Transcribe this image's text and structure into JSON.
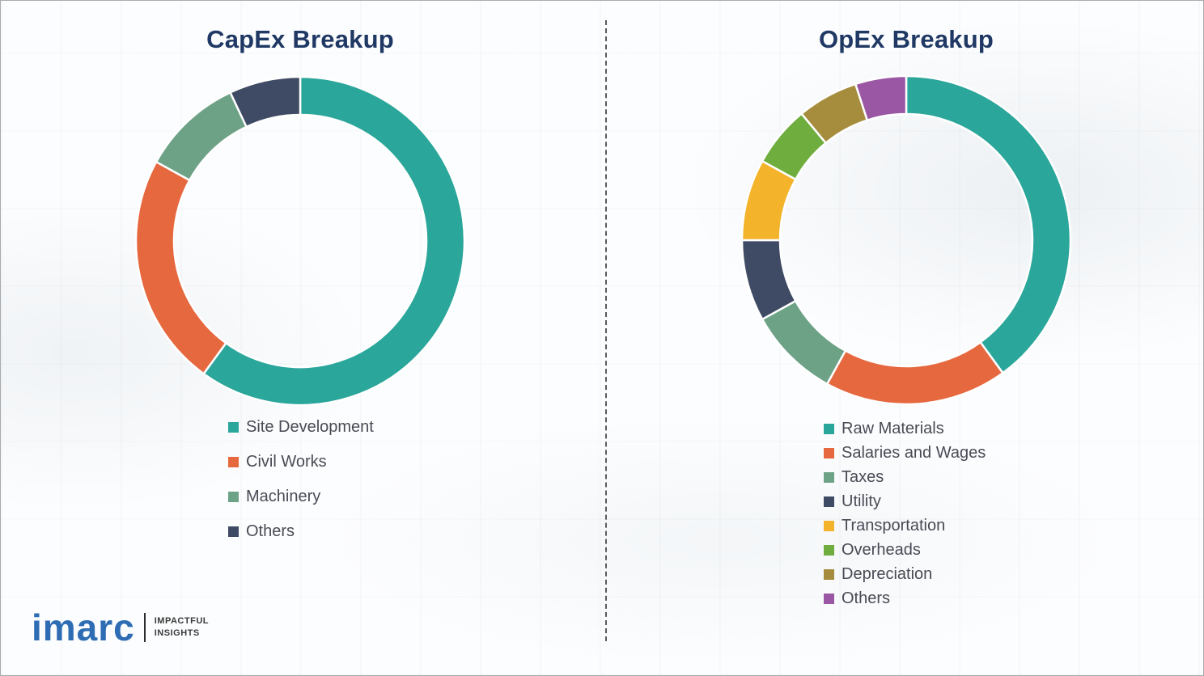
{
  "chart_data": [
    {
      "type": "pie",
      "subtype": "donut",
      "title": "CapEx Breakup",
      "labels": [
        "Site Development",
        "Civil Works",
        "Machinery",
        "Others"
      ],
      "values": [
        60,
        23,
        10,
        7
      ],
      "colors": [
        "#2ba69b",
        "#e6683f",
        "#6da287",
        "#3f4b64"
      ],
      "legend_position": "below-left",
      "start_angle_deg": -90,
      "direction": "clockwise"
    },
    {
      "type": "pie",
      "subtype": "donut",
      "title": "OpEx Breakup",
      "labels": [
        "Raw Materials",
        "Salaries and Wages",
        "Taxes",
        "Utility",
        "Transportation",
        "Overheads",
        "Depreciation",
        "Others"
      ],
      "values": [
        40,
        18,
        9,
        8,
        8,
        6,
        6,
        5
      ],
      "colors": [
        "#2ba69b",
        "#e6683f",
        "#6da287",
        "#3f4b64",
        "#f3b32b",
        "#6fae3e",
        "#a68d3e",
        "#9a57a3"
      ],
      "legend_position": "below-left",
      "start_angle_deg": -90,
      "direction": "clockwise"
    }
  ],
  "logo": {
    "brand": "imarc",
    "tagline_line1": "IMPACTFUL",
    "tagline_line2": "INSIGHTS"
  }
}
